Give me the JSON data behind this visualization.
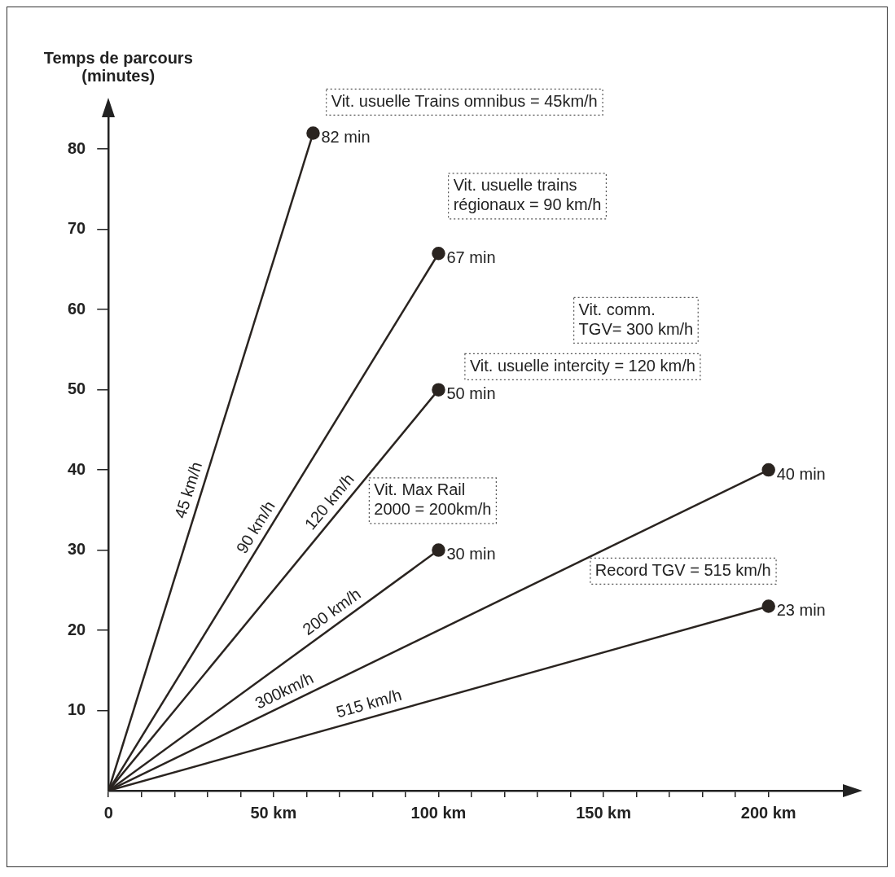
{
  "chart_data": {
    "type": "line",
    "ylabel": "Temps de parcours\n(minutes)",
    "xlim": [
      0,
      225
    ],
    "ylim": [
      0,
      85
    ],
    "xticks": [
      {
        "value": 0,
        "label": "0"
      },
      {
        "value": 10,
        "label": null
      },
      {
        "value": 20,
        "label": null
      },
      {
        "value": 30,
        "label": null
      },
      {
        "value": 40,
        "label": null
      },
      {
        "value": 50,
        "label": "50 km"
      },
      {
        "value": 60,
        "label": null
      },
      {
        "value": 70,
        "label": null
      },
      {
        "value": 80,
        "label": null
      },
      {
        "value": 90,
        "label": null
      },
      {
        "value": 100,
        "label": "100 km"
      },
      {
        "value": 110,
        "label": null
      },
      {
        "value": 120,
        "label": null
      },
      {
        "value": 130,
        "label": null
      },
      {
        "value": 140,
        "label": null
      },
      {
        "value": 150,
        "label": "150 km"
      },
      {
        "value": 160,
        "label": null
      },
      {
        "value": 170,
        "label": null
      },
      {
        "value": 180,
        "label": null
      },
      {
        "value": 190,
        "label": null
      },
      {
        "value": 200,
        "label": "200 km"
      }
    ],
    "yticks": [
      10,
      20,
      30,
      40,
      50,
      60,
      70,
      80
    ],
    "grid": false,
    "legend": false,
    "marker": "circle",
    "series": [
      {
        "color": "#2a2420",
        "x": [
          0,
          62
        ],
        "values": [
          0,
          82
        ],
        "value_labels": [
          null,
          "82 min"
        ]
      },
      {
        "color": "#2a2420",
        "x": [
          0,
          100
        ],
        "values": [
          0,
          67
        ],
        "value_labels": [
          null,
          "67 min"
        ]
      },
      {
        "color": "#2a2420",
        "x": [
          0,
          100
        ],
        "values": [
          0,
          50
        ],
        "value_labels": [
          null,
          "50 min"
        ]
      },
      {
        "color": "#2a2420",
        "x": [
          0,
          100
        ],
        "values": [
          0,
          30
        ],
        "value_labels": [
          null,
          "30 min"
        ]
      },
      {
        "color": "#2a2420",
        "x": [
          0,
          200
        ],
        "values": [
          0,
          40
        ],
        "value_labels": [
          null,
          "40 min"
        ]
      },
      {
        "color": "#2a2420",
        "x": [
          0,
          200
        ],
        "values": [
          0,
          23
        ],
        "value_labels": [
          null,
          "23 min"
        ]
      }
    ],
    "annotations": [
      "Vit. usuelle Trains omnibus = 45km/h",
      "Vit. usuelle trains\nrégionaux = 90 km/h",
      "Vit. usuelle intercity = 120 km/h",
      "Vit. comm.\nTGV= 300 km/h",
      "Vit. Max Rail\n2000 = 200km/h",
      "Record TGV = 515 km/h",
      {
        "text": "45 km/h",
        "x": 28,
        "y": 37
      },
      {
        "text": "90 km/h",
        "x": 48,
        "y": 32
      },
      {
        "text": "120 km/h",
        "x": 70,
        "y": 35
      },
      {
        "text": "200 km/h",
        "x": 70,
        "y": 21
      },
      {
        "text": "300km/h",
        "x": 55,
        "y": 11
      },
      {
        "text": "515 km/h",
        "x": 80,
        "y": 9.3
      }
    ]
  }
}
